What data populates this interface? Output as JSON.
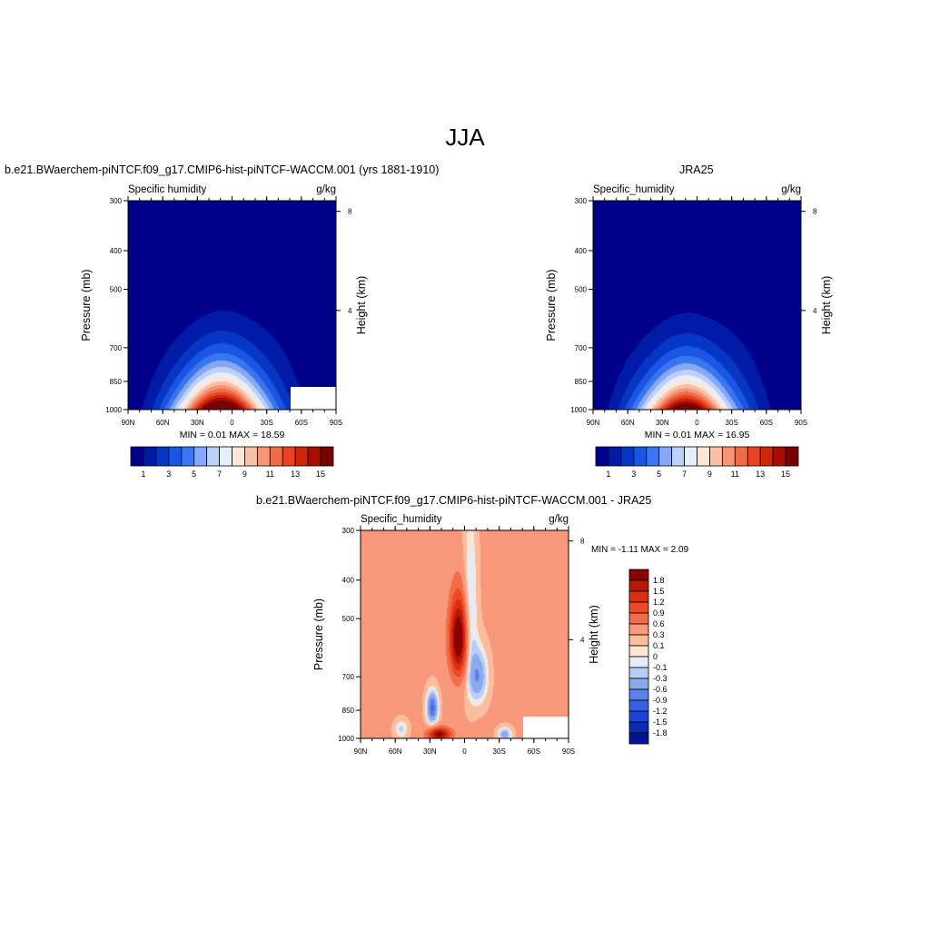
{
  "page": {
    "title": "JJA"
  },
  "colors": {
    "positive_palette": [
      "#fde4d2",
      "#fbbda0",
      "#f8977a",
      "#f46d4a",
      "#ee4a26",
      "#d8300e",
      "#b81806",
      "#8c0000"
    ],
    "negative_palette": [
      "#e4ecfb",
      "#b7ccf6",
      "#8aa9ee",
      "#5b82ea",
      "#3161e6",
      "#1a45d6",
      "#0a2cb0",
      "#001590"
    ],
    "white": "#ffffff"
  },
  "chart_data": [
    {
      "type": "heatmap",
      "title": "b.e21.BWaerchem-piNTCF.f09_g17.CMIP6-hist-piNTCF-WACCM.001 (yrs 1881-1910)",
      "left_string": "Specific humidity",
      "right_string": "g/kg",
      "ylabel": "Pressure (mb)",
      "y2label": "Height (km)",
      "x_ticks": [
        "90N",
        "60N",
        "30N",
        "0",
        "30S",
        "60S",
        "90S"
      ],
      "y_ticks": [
        "300",
        "400",
        "500",
        "700",
        "850",
        "1000"
      ],
      "y2_ticks": [
        "8",
        "4"
      ],
      "stats": "MIN =   0.01  MAX =  18.59",
      "colorbar": {
        "orientation": "horizontal",
        "levels": [
          "1",
          "3",
          "5",
          "7",
          "9",
          "11",
          "13",
          "15"
        ],
        "colors": [
          "#00008a",
          "#001ba8",
          "#0637c4",
          "#1a55e4",
          "#3a75f0",
          "#86a8f6",
          "#bfd0f8",
          "#e6eefc",
          "#fde6d6",
          "#f9bea4",
          "#f59576",
          "#f06c48",
          "#e84422",
          "#ce2408",
          "#a40d00",
          "#7a0000"
        ]
      },
      "grid_peak_value": 18.59,
      "base_minimum": 0.01
    },
    {
      "type": "heatmap",
      "title": "JRA25",
      "left_string": "Specific_humidity",
      "right_string": "g/kg",
      "ylabel": "Pressure (mb)",
      "y2label": "Height (km)",
      "x_ticks": [
        "90N",
        "60N",
        "30N",
        "0",
        "30S",
        "60S",
        "90S"
      ],
      "y_ticks": [
        "300",
        "400",
        "500",
        "700",
        "850",
        "1000"
      ],
      "y2_ticks": [
        "8",
        "4"
      ],
      "stats": "MIN =   0.01  MAX =  16.95",
      "colorbar": {
        "orientation": "horizontal",
        "levels": [
          "1",
          "3",
          "5",
          "7",
          "9",
          "11",
          "13",
          "15"
        ],
        "colors": [
          "#00008a",
          "#001ba8",
          "#0637c4",
          "#1a55e4",
          "#3a75f0",
          "#86a8f6",
          "#bfd0f8",
          "#e6eefc",
          "#fde6d6",
          "#f9bea4",
          "#f59576",
          "#f06c48",
          "#e84422",
          "#ce2408",
          "#a40d00",
          "#7a0000"
        ]
      },
      "grid_peak_value": 16.95,
      "base_minimum": 0.01
    },
    {
      "type": "heatmap",
      "title": "b.e21.BWaerchem-piNTCF.f09_g17.CMIP6-hist-piNTCF-WACCM.001 - JRA25",
      "left_string": "Specific_humidity",
      "right_string": "g/kg",
      "ylabel": "Pressure (mb)",
      "y2label": "Height (km)",
      "x_ticks": [
        "90N",
        "60N",
        "30N",
        "0",
        "30S",
        "60S",
        "90S"
      ],
      "y_ticks": [
        "300",
        "400",
        "500",
        "700",
        "850",
        "1000"
      ],
      "y2_ticks": [
        "8",
        "4"
      ],
      "stats": "MIN =  -1.11  MAX =   2.09",
      "colorbar": {
        "orientation": "vertical",
        "levels": [
          "1.8",
          "1.5",
          "1.2",
          "0.9",
          "0.6",
          "0.3",
          "0.1",
          "0",
          "-0.1",
          "-0.3",
          "-0.6",
          "-0.9",
          "-1.2",
          "-1.5",
          "-1.8"
        ],
        "colors": [
          "#8c0000",
          "#b81806",
          "#d8300e",
          "#ee4a26",
          "#f46d4a",
          "#f8977a",
          "#fbbda0",
          "#fde4d2",
          "#e4ecfb",
          "#b7ccf6",
          "#8aa9ee",
          "#5b82ea",
          "#3161e6",
          "#1a45d6",
          "#0a2cb0",
          "#001590"
        ]
      }
    }
  ]
}
